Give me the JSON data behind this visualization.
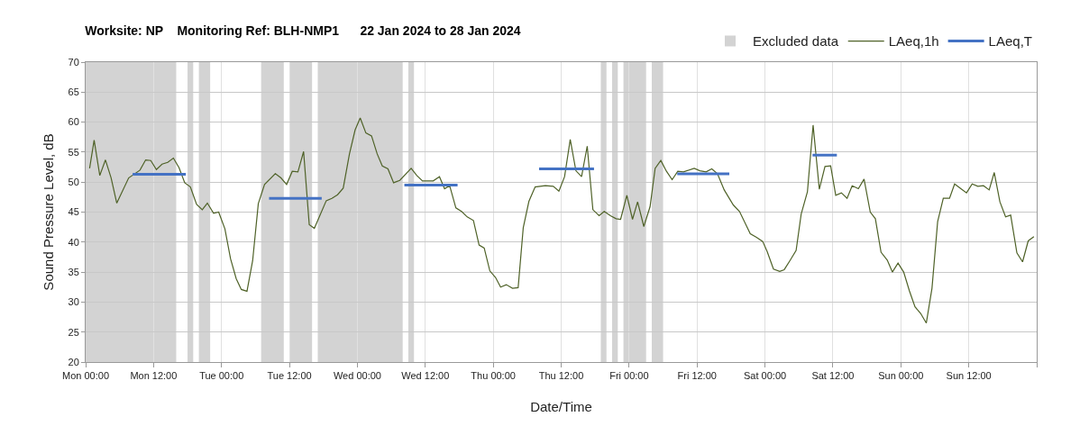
{
  "chart_data": {
    "type": "line",
    "title": "Worksite: NP    Monitoring Ref: BLH-NMP1      22 Jan 2024 to 28 Jan 2024",
    "xlabel": "Date/Time",
    "ylabel": "Sound Pressure Level, dB",
    "xlim": [
      "2024-01-22T00:00",
      "2024-01-29T00:00"
    ],
    "ylim": [
      20,
      70
    ],
    "xticks": [
      {
        "value": "2024-01-22T00:00",
        "label": "Mon 00:00"
      },
      {
        "value": "2024-01-22T12:00",
        "label": "Mon 12:00"
      },
      {
        "value": "2024-01-23T00:00",
        "label": "Tue 00:00"
      },
      {
        "value": "2024-01-23T12:00",
        "label": "Tue 12:00"
      },
      {
        "value": "2024-01-24T00:00",
        "label": "Wed 00:00"
      },
      {
        "value": "2024-01-24T12:00",
        "label": "Wed 12:00"
      },
      {
        "value": "2024-01-25T00:00",
        "label": "Thu 00:00"
      },
      {
        "value": "2024-01-25T12:00",
        "label": "Thu 12:00"
      },
      {
        "value": "2024-01-26T00:00",
        "label": "Fri 00:00"
      },
      {
        "value": "2024-01-26T12:00",
        "label": "Fri 12:00"
      },
      {
        "value": "2024-01-27T00:00",
        "label": "Sat 00:00"
      },
      {
        "value": "2024-01-27T12:00",
        "label": "Sat 12:00"
      },
      {
        "value": "2024-01-28T00:00",
        "label": "Sun 00:00"
      },
      {
        "value": "2024-01-28T12:00",
        "label": "Sun 12:00"
      },
      {
        "value": "2024-01-29T00:00",
        "label": null
      }
    ],
    "yticks": [
      20,
      25,
      30,
      35,
      40,
      45,
      50,
      55,
      60,
      65,
      70
    ],
    "grid": true,
    "legend": "top right",
    "marker": "none",
    "bands": [
      {
        "axis": "x",
        "from": "2024-01-22T00:00",
        "to": "2024-01-22T16:00",
        "label": "Excluded data",
        "color": "#d3d3d3"
      },
      {
        "axis": "x",
        "from": "2024-01-22T18:00",
        "to": "2024-01-22T19:00",
        "color": "#d3d3d3"
      },
      {
        "axis": "x",
        "from": "2024-01-22T20:00",
        "to": "2024-01-22T22:00",
        "color": "#d3d3d3"
      },
      {
        "axis": "x",
        "from": "2024-01-23T07:00",
        "to": "2024-01-23T11:00",
        "color": "#d3d3d3"
      },
      {
        "axis": "x",
        "from": "2024-01-23T12:00",
        "to": "2024-01-23T16:00",
        "color": "#d3d3d3"
      },
      {
        "axis": "x",
        "from": "2024-01-23T17:00",
        "to": "2024-01-24T08:00",
        "color": "#d3d3d3"
      },
      {
        "axis": "x",
        "from": "2024-01-24T09:00",
        "to": "2024-01-24T10:00",
        "color": "#d3d3d3"
      },
      {
        "axis": "x",
        "from": "2024-01-25T19:00",
        "to": "2024-01-25T20:00",
        "color": "#d3d3d3"
      },
      {
        "axis": "x",
        "from": "2024-01-25T21:00",
        "to": "2024-01-25T22:00",
        "color": "#d3d3d3"
      },
      {
        "axis": "x",
        "from": "2024-01-25T23:00",
        "to": "2024-01-26T03:00",
        "color": "#d3d3d3"
      },
      {
        "axis": "x",
        "from": "2024-01-26T04:00",
        "to": "2024-01-26T06:00",
        "color": "#d3d3d3"
      }
    ],
    "series": [
      {
        "name": "LAeq,1h",
        "color": "#4f6228",
        "line_style": "solid",
        "x": [
          "2024-01-22T00:42",
          "2024-01-22T01:30",
          "2024-01-22T02:30",
          "2024-01-22T03:30",
          "2024-01-22T04:30",
          "2024-01-22T05:30",
          "2024-01-22T07:36",
          "2024-01-22T09:36",
          "2024-01-22T10:36",
          "2024-01-22T11:30",
          "2024-01-22T12:30",
          "2024-01-22T13:30",
          "2024-01-22T14:30",
          "2024-01-22T15:30",
          "2024-01-22T16:30",
          "2024-01-22T17:30",
          "2024-01-22T18:30",
          "2024-01-22T19:36",
          "2024-01-22T20:36",
          "2024-01-22T21:30",
          "2024-01-22T22:36",
          "2024-01-22T23:30",
          "2024-01-23T00:36",
          "2024-01-23T01:36",
          "2024-01-23T02:36",
          "2024-01-23T03:30",
          "2024-01-23T04:30",
          "2024-01-23T05:30",
          "2024-01-23T06:30",
          "2024-01-23T07:36",
          "2024-01-23T09:30",
          "2024-01-23T10:30",
          "2024-01-23T11:30",
          "2024-01-23T12:30",
          "2024-01-23T13:30",
          "2024-01-23T14:30",
          "2024-01-23T15:30",
          "2024-01-23T16:24",
          "2024-01-23T18:30",
          "2024-01-23T19:30",
          "2024-01-23T20:30",
          "2024-01-23T21:30",
          "2024-01-23T22:36",
          "2024-01-23T23:36",
          "2024-01-24T00:30",
          "2024-01-24T01:30",
          "2024-01-24T02:30",
          "2024-01-24T03:30",
          "2024-01-24T04:24",
          "2024-01-24T05:24",
          "2024-01-24T06:24",
          "2024-01-24T07:30",
          "2024-01-24T09:30",
          "2024-01-24T10:30",
          "2024-01-24T11:30",
          "2024-01-24T13:24",
          "2024-01-24T14:30",
          "2024-01-24T15:24",
          "2024-01-24T16:18",
          "2024-01-24T17:24",
          "2024-01-24T18:24",
          "2024-01-24T19:24",
          "2024-01-24T20:30",
          "2024-01-24T21:30",
          "2024-01-24T22:24",
          "2024-01-24T23:24",
          "2024-01-25T00:24",
          "2024-01-25T01:18",
          "2024-01-25T02:18",
          "2024-01-25T03:24",
          "2024-01-25T04:24",
          "2024-01-25T05:18",
          "2024-01-25T06:18",
          "2024-01-25T07:24",
          "2024-01-25T09:12",
          "2024-01-25T10:36",
          "2024-01-25T11:36",
          "2024-01-25T12:36",
          "2024-01-25T13:36",
          "2024-01-25T14:36",
          "2024-01-25T15:36",
          "2024-01-25T16:36",
          "2024-01-25T17:36",
          "2024-01-25T18:42",
          "2024-01-25T19:36",
          "2024-01-25T20:42",
          "2024-01-25T21:42",
          "2024-01-25T22:30",
          "2024-01-25T23:36",
          "2024-01-26T00:36",
          "2024-01-26T01:30",
          "2024-01-26T02:36",
          "2024-01-26T03:42",
          "2024-01-26T04:36",
          "2024-01-26T05:36",
          "2024-01-26T06:36",
          "2024-01-26T07:36",
          "2024-01-26T08:36",
          "2024-01-26T09:36",
          "2024-01-26T11:30",
          "2024-01-26T12:30",
          "2024-01-26T13:36",
          "2024-01-26T14:36",
          "2024-01-26T15:36",
          "2024-01-26T16:48",
          "2024-01-26T18:24",
          "2024-01-26T19:30",
          "2024-01-26T21:24",
          "2024-01-26T22:30",
          "2024-01-26T23:36",
          "2024-01-27T00:24",
          "2024-01-27T01:30",
          "2024-01-27T02:36",
          "2024-01-27T03:24",
          "2024-01-27T04:24",
          "2024-01-27T05:30",
          "2024-01-27T06:24",
          "2024-01-27T07:30",
          "2024-01-27T08:30",
          "2024-01-27T09:36",
          "2024-01-27T10:36",
          "2024-01-27T11:36",
          "2024-01-27T12:30",
          "2024-01-27T13:30",
          "2024-01-27T14:30",
          "2024-01-27T15:24",
          "2024-01-27T16:30",
          "2024-01-27T17:30",
          "2024-01-27T18:36",
          "2024-01-27T19:30",
          "2024-01-27T20:30",
          "2024-01-27T21:36",
          "2024-01-27T22:30",
          "2024-01-27T23:30",
          "2024-01-28T00:30",
          "2024-01-28T01:30",
          "2024-01-28T02:30",
          "2024-01-28T03:30",
          "2024-01-28T04:30",
          "2024-01-28T05:30",
          "2024-01-28T06:30",
          "2024-01-28T07:30",
          "2024-01-28T08:36",
          "2024-01-28T09:30",
          "2024-01-28T10:36",
          "2024-01-28T11:36",
          "2024-01-28T12:36",
          "2024-01-28T13:36",
          "2024-01-28T14:36",
          "2024-01-28T15:36",
          "2024-01-28T16:30",
          "2024-01-28T17:30",
          "2024-01-28T18:30",
          "2024-01-28T19:24",
          "2024-01-28T20:30",
          "2024-01-28T21:30",
          "2024-01-28T22:30",
          "2024-01-28T23:30"
        ],
        "values": [
          52.3,
          57.0,
          51.1,
          53.7,
          50.7,
          46.5,
          50.7,
          52.0,
          53.7,
          53.6,
          52.1,
          53.0,
          53.3,
          54.0,
          52.4,
          49.9,
          49.2,
          46.3,
          45.4,
          46.5,
          44.8,
          45.0,
          42.2,
          37.2,
          33.9,
          32.1,
          31.8,
          36.9,
          46.4,
          49.6,
          51.4,
          50.7,
          49.6,
          51.8,
          51.7,
          55.1,
          42.9,
          42.3,
          46.9,
          47.3,
          47.9,
          49.0,
          54.7,
          58.7,
          60.7,
          58.2,
          57.7,
          54.7,
          52.7,
          52.2,
          49.9,
          50.3,
          52.3,
          51.1,
          50.2,
          50.2,
          50.9,
          48.9,
          49.4,
          45.7,
          45.1,
          44.2,
          43.6,
          39.5,
          39.0,
          35.2,
          34.1,
          32.5,
          32.9,
          32.3,
          32.4,
          42.4,
          46.8,
          49.2,
          49.4,
          49.3,
          48.5,
          50.9,
          57.1,
          51.9,
          50.9,
          56.0,
          45.4,
          44.4,
          45.1,
          44.4,
          43.9,
          43.8,
          47.8,
          43.8,
          46.7,
          42.6,
          45.9,
          52.3,
          53.6,
          51.8,
          50.4,
          51.8,
          51.7,
          52.3,
          51.9,
          51.7,
          52.2,
          51.4,
          48.7,
          46.2,
          45.1,
          41.4,
          40.8,
          40.1,
          38.4,
          35.5,
          35.1,
          35.4,
          36.9,
          38.6,
          44.7,
          48.4,
          59.5,
          48.8,
          52.6,
          52.7,
          47.8,
          48.2,
          47.3,
          49.4,
          48.9,
          50.5,
          45.0,
          43.9,
          38.3,
          37.0,
          35.0,
          36.5,
          35.0,
          31.9,
          29.2,
          28.1,
          26.5,
          32.3,
          43.4,
          47.3,
          47.3,
          49.7,
          48.9,
          48.2,
          49.7,
          49.3,
          49.4,
          48.7,
          51.6,
          46.7,
          44.2,
          44.5,
          38.2,
          36.7,
          40.2,
          40.9
        ]
      },
      {
        "name": "LAeq,T",
        "color": "#4472c4",
        "line_style": "solid",
        "x": [
          "2024-01-22T08:18",
          "2024-01-22T17:42",
          "2024-01-23T01:00",
          "2024-01-23T08:24",
          "2024-01-23T17:42",
          "2024-01-24T01:00",
          "2024-01-24T08:18",
          "2024-01-24T17:42",
          "2024-01-25T01:00",
          "2024-01-25T08:06",
          "2024-01-25T17:48",
          "2024-01-26T01:00",
          "2024-01-26T08:30",
          "2024-01-26T17:42",
          "2024-01-27T01:00",
          "2024-01-27T08:24",
          "2024-01-27T12:42"
        ],
        "values": [
          51.3,
          51.3,
          null,
          47.3,
          47.3,
          null,
          49.5,
          49.5,
          null,
          52.2,
          52.2,
          null,
          51.4,
          51.4,
          null,
          54.5,
          54.5
        ]
      }
    ]
  }
}
